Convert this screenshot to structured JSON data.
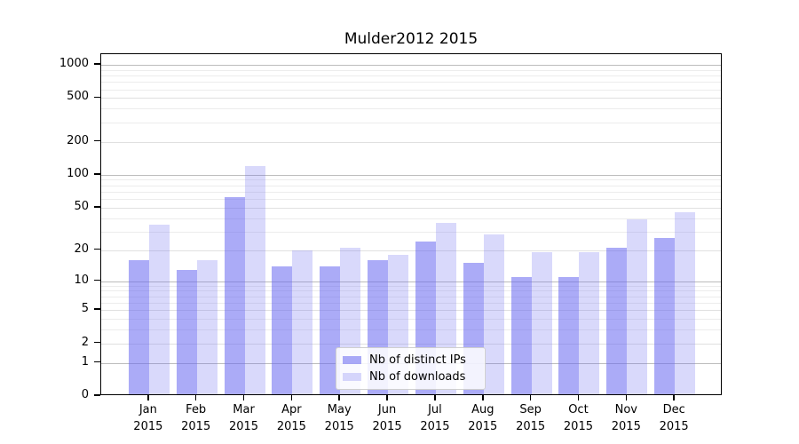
{
  "chart_data": {
    "type": "bar",
    "title": "Mulder2012 2015",
    "categories": [
      "Jan",
      "Feb",
      "Mar",
      "Apr",
      "May",
      "Jun",
      "Jul",
      "Aug",
      "Sep",
      "Oct",
      "Nov",
      "Dec"
    ],
    "category_year": "2015",
    "series": [
      {
        "name": "Nb of distinct IPs",
        "color": "rgba(102,102,240,0.55)",
        "values": [
          16,
          13,
          62,
          14,
          14,
          16,
          24,
          15,
          11,
          11,
          21,
          26
        ]
      },
      {
        "name": "Nb of downloads",
        "color": "rgba(102,102,240,0.25)",
        "values": [
          35,
          16,
          120,
          20,
          21,
          18,
          36,
          28,
          19,
          19,
          39,
          45
        ]
      }
    ],
    "yscale": "symlog",
    "ylim": [
      0,
      1250
    ],
    "y_ticks": [
      0,
      1,
      2,
      5,
      10,
      20,
      50,
      100,
      200,
      500,
      1000
    ],
    "y_minor_ticks": [
      3,
      4,
      6,
      7,
      8,
      9,
      30,
      40,
      60,
      70,
      80,
      90,
      300,
      400,
      600,
      700,
      800,
      900
    ],
    "grid": "horizontal",
    "legend_position": "lower center",
    "colors": {
      "decade_gridline": "#bcbcbc",
      "major_gridline": "#e0e0e0",
      "minor_gridline": "#ececec",
      "axis": "#000000",
      "background": "#ffffff"
    }
  }
}
